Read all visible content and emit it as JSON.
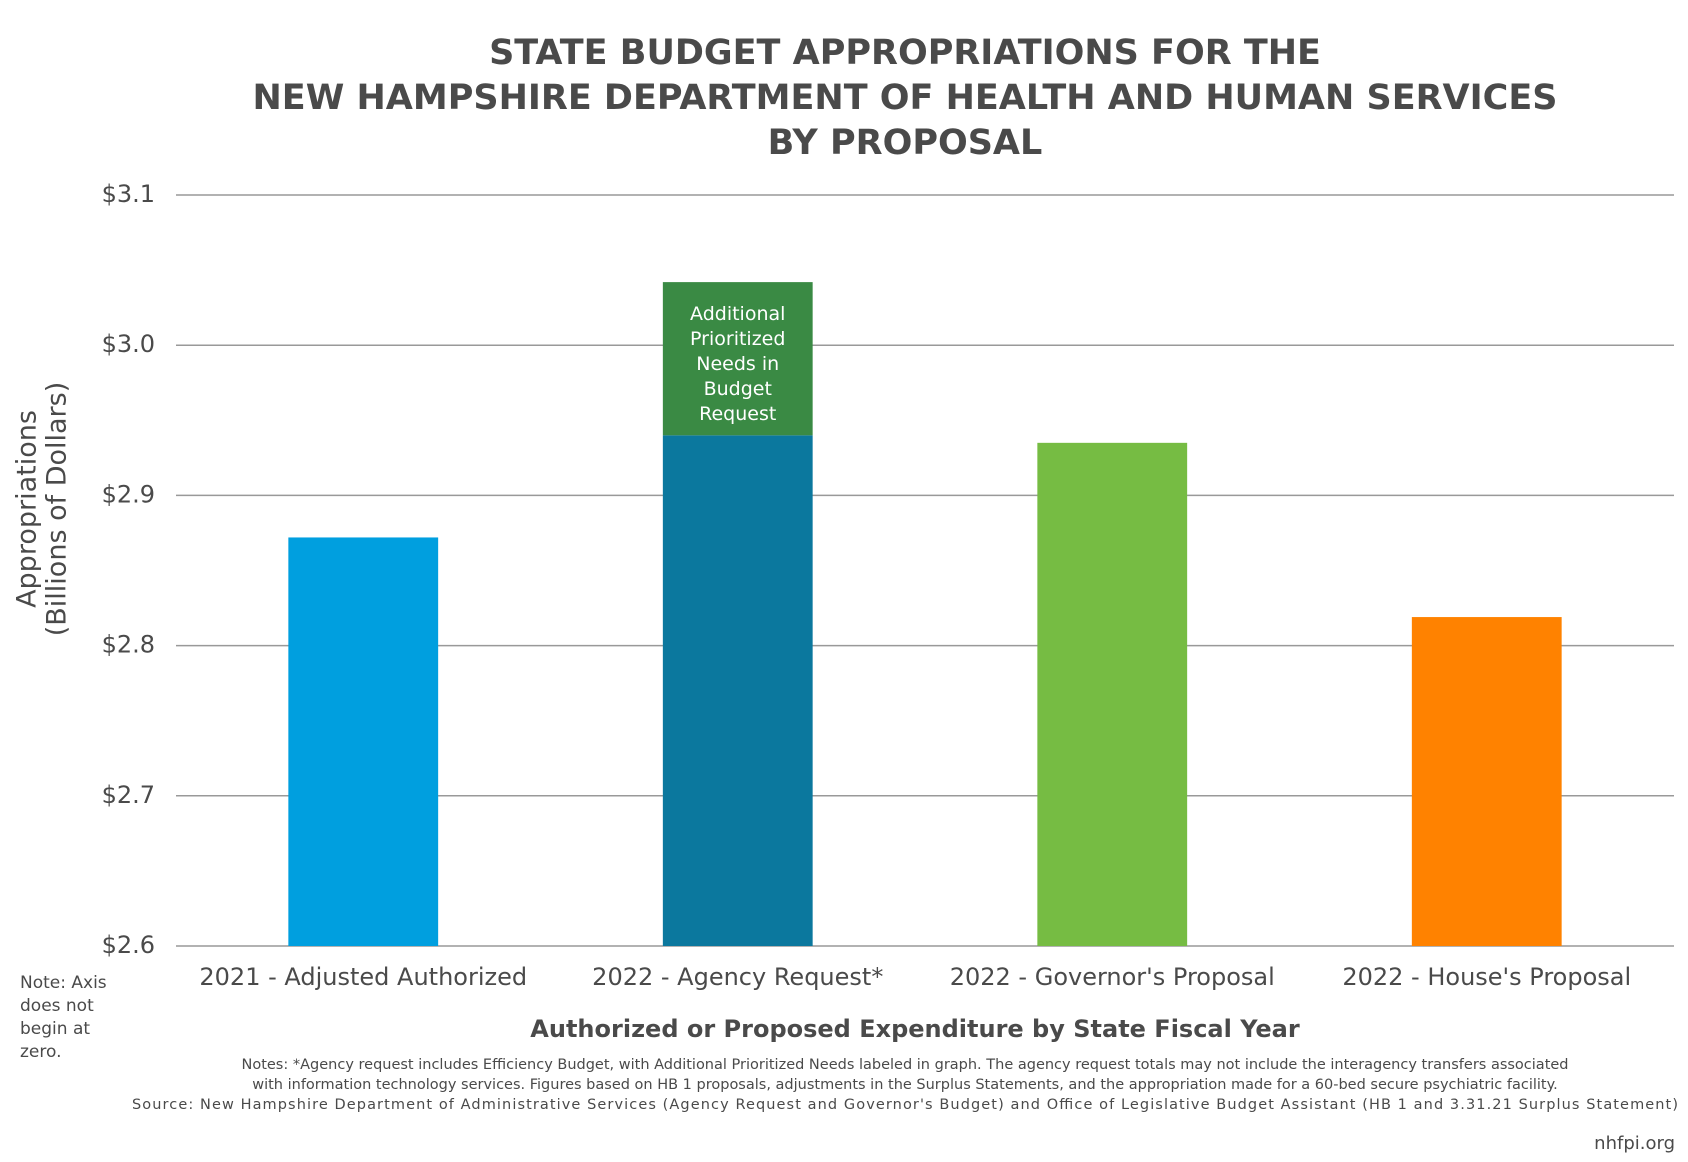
{
  "chart_data": {
    "type": "bar",
    "title": [
      "STATE BUDGET APPROPRIATIONS FOR THE",
      "NEW HAMPSHIRE DEPARTMENT OF HEALTH AND HUMAN SERVICES",
      "BY PROPOSAL"
    ],
    "y_label": [
      "Appropriations",
      "(Billions of Dollars)"
    ],
    "x_label": "Authorized or Proposed Expenditure by State Fiscal Year",
    "categories": [
      "2021 - Adjusted Authorized",
      "2022 - Agency Request*",
      "2022 - Governor's Proposal",
      "2022 - House's Proposal"
    ],
    "values": [
      2.872,
      2.94,
      2.935,
      2.819
    ],
    "colors": [
      "#009fdf",
      "#0b789e",
      "#76bc43",
      "#ff8200"
    ],
    "additional": {
      "name": "Additional Prioritized Needs in Budget Request",
      "color": "#3a8a44",
      "values": [
        null,
        0.102,
        null,
        null
      ]
    },
    "ylim": [
      2.6,
      3.1
    ],
    "yticks": [
      {
        "value": 2.6,
        "label": "$2.6"
      },
      {
        "value": 2.7,
        "label": "$2.7"
      },
      {
        "value": 2.8,
        "label": "$2.8"
      },
      {
        "value": 2.9,
        "label": "$2.9"
      },
      {
        "value": 3.0,
        "label": "$3.0"
      },
      {
        "value": 3.1,
        "label": "$3.1"
      }
    ],
    "grid": true,
    "side_note": "Note: Axis does not begin at zero.",
    "notes": [
      "Notes: *Agency request includes Efficiency Budget, with Additional Prioritized Needs labeled in graph. The agency request totals may not include the interagency transfers associated",
      "with information technology services. Figures based on HB 1 proposals, adjustments in the Surplus Statements, and the appropriation made for a 60-bed secure psychiatric facility.",
      "Source: New Hampshire Department of Administrative Services (Agency Request and Governor's Budget) and Office of Legislative Budget Assistant (HB 1 and 3.31.21 Surplus Statement)"
    ],
    "credit": "nhfpi.org"
  }
}
